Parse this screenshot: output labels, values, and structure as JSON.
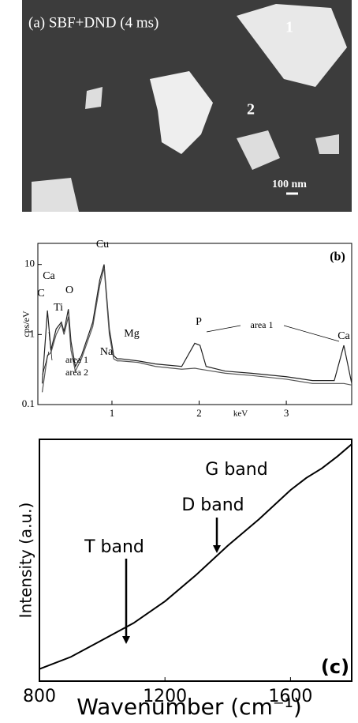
{
  "panel_a": {
    "caption": "(a) SBF+DND (4 ms)",
    "region_1": "1",
    "region_2": "2",
    "scale_bar": "100 nm"
  },
  "chart_data": [
    {
      "type": "line",
      "label": "(b)",
      "ylabel": "cps/eV",
      "xlabel": "keV",
      "log_y": true,
      "x": [
        0.2,
        0.26,
        0.3,
        0.36,
        0.42,
        0.45,
        0.5,
        0.53,
        0.58,
        0.65,
        0.78,
        0.86,
        0.91,
        0.97,
        1.02,
        1.06,
        1.1,
        1.3,
        1.5,
        1.8,
        1.95,
        2.01,
        2.08,
        2.3,
        2.6,
        3.0,
        3.3,
        3.55,
        3.66,
        3.75
      ],
      "series": [
        {
          "name": "area 1",
          "color": "#222222",
          "values": [
            0.2,
            2.2,
            0.6,
            1.2,
            1.5,
            1.1,
            2.3,
            0.8,
            0.35,
            0.5,
            1.5,
            6,
            10,
            1.2,
            0.5,
            0.45,
            0.45,
            0.42,
            0.38,
            0.35,
            0.75,
            0.7,
            0.35,
            0.3,
            0.28,
            0.25,
            0.22,
            0.22,
            0.7,
            0.2
          ]
        },
        {
          "name": "area 2",
          "color": "#555555",
          "values": [
            0.15,
            0.5,
            0.55,
            1.0,
            1.4,
            1.0,
            1.8,
            0.6,
            0.3,
            0.45,
            1.3,
            5,
            9,
            1.0,
            0.45,
            0.42,
            0.42,
            0.4,
            0.35,
            0.32,
            0.33,
            0.32,
            0.31,
            0.28,
            0.26,
            0.23,
            0.2,
            0.2,
            0.2,
            0.19
          ]
        }
      ],
      "xlim": [
        0.15,
        3.75
      ],
      "ylim": [
        0.1,
        20
      ],
      "xticks": [
        1,
        2,
        3
      ],
      "yticks": [
        0.1,
        1,
        10
      ],
      "annotations": [
        "Ca",
        "C",
        "Ti",
        "O",
        "Cu",
        "Na",
        "Mg",
        "P",
        "Ca"
      ]
    },
    {
      "type": "line",
      "label": "(c)",
      "ylabel": "Intensity (a.u.)",
      "xlabel": "Wavenumber (cm⁻¹)",
      "x": [
        800,
        900,
        1000,
        1100,
        1200,
        1300,
        1400,
        1500,
        1600,
        1650,
        1700,
        1750,
        1795
      ],
      "series": [
        {
          "color": "#000000",
          "values": [
            0.05,
            0.1,
            0.17,
            0.24,
            0.33,
            0.44,
            0.56,
            0.67,
            0.79,
            0.84,
            0.88,
            0.93,
            0.98
          ]
        }
      ],
      "xlim": [
        800,
        1795
      ],
      "ylim": [
        0,
        1
      ],
      "xticks": [
        800,
        1200,
        1600
      ],
      "annotations": [
        "G band",
        "D band",
        "T band"
      ]
    }
  ]
}
